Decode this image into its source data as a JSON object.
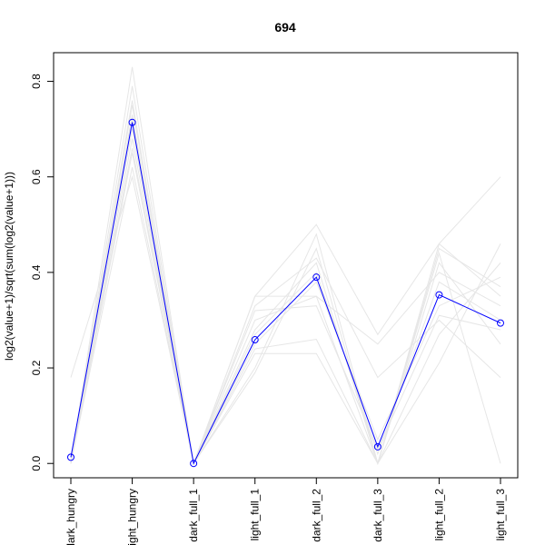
{
  "chart_data": {
    "type": "line",
    "title": "694",
    "xlabel": "",
    "ylabel": "log2(value+1)/sqrt(sum(log2(value+1)))",
    "categories": [
      "dark_hungry",
      "light_hungry",
      "dark_full_1",
      "light_full_1",
      "dark_full_2",
      "dark_full_3",
      "light_full_2",
      "light_full_3"
    ],
    "ylim": [
      -0.03,
      0.86
    ],
    "yticks": [
      0.0,
      0.2,
      0.4,
      0.6,
      0.8
    ],
    "ytick_labels": [
      "0.0",
      "0.2",
      "0.4",
      "0.6",
      "0.8"
    ],
    "grid": false,
    "highlight_series": {
      "color": "#0000ff",
      "values": [
        0.013,
        0.714,
        0.0,
        0.259,
        0.39,
        0.035,
        0.353,
        0.294
      ]
    },
    "background_series_color": "#e6e6e6",
    "background_series": [
      [
        0.0,
        0.83,
        0.0,
        0.35,
        0.5,
        0.27,
        0.46,
        0.6
      ],
      [
        0.18,
        0.6,
        0.0,
        0.19,
        0.45,
        0.0,
        0.44,
        0.0
      ],
      [
        0.0,
        0.79,
        0.0,
        0.24,
        0.26,
        0.0,
        0.21,
        0.46
      ],
      [
        0.0,
        0.65,
        0.0,
        0.33,
        0.43,
        0.18,
        0.3,
        0.18
      ],
      [
        0.0,
        0.75,
        0.0,
        0.23,
        0.23,
        0.0,
        0.46,
        0.35
      ],
      [
        0.0,
        0.72,
        0.0,
        0.3,
        0.35,
        0.0,
        0.42,
        0.25
      ],
      [
        0.0,
        0.7,
        0.0,
        0.27,
        0.4,
        0.02,
        0.38,
        0.3
      ],
      [
        0.0,
        0.68,
        0.0,
        0.25,
        0.38,
        0.05,
        0.33,
        0.39
      ],
      [
        0.0,
        0.76,
        0.0,
        0.28,
        0.42,
        0.0,
        0.27,
        0.42
      ],
      [
        0.0,
        0.62,
        0.0,
        0.35,
        0.35,
        0.25,
        0.4,
        0.33
      ],
      [
        0.0,
        0.73,
        0.0,
        0.2,
        0.48,
        0.0,
        0.45,
        0.37
      ],
      [
        0.0,
        0.66,
        0.0,
        0.32,
        0.33,
        0.03,
        0.31,
        0.28
      ]
    ]
  }
}
